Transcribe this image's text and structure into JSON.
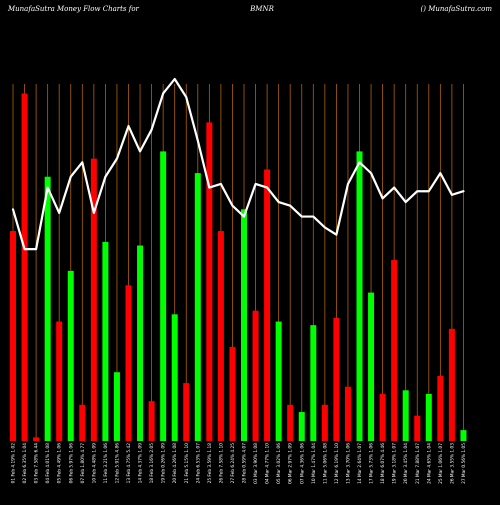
{
  "header": {
    "left_text": "MunafaSutra  Money Flow  Charts for",
    "ticker": "BMNR",
    "right_text": "() MunafaSutra.com"
  },
  "colors": {
    "background": "#000000",
    "up": "#00ff00",
    "down": "#ff0000",
    "line": "#ffffff",
    "grid": "#b0620a"
  },
  "chart_data": {
    "type": "bar",
    "grid": "vertical-orange",
    "ylim": [
      0,
      100
    ],
    "categories": [
      "01 Feb 4.19% 1.02",
      "02 Feb 6.35% 1.04",
      "03 Feb 7.58% 6.44",
      "04 Feb 4.01% 1.08",
      "05 Feb 4.49% 1.06",
      "06 Feb 5.97% 1.06",
      "07 Feb 1.80% 4.77",
      "10 Feb 4.48% 1.09",
      "11 Feb 3.21% 1.06",
      "12 Feb 5.91% 4.86",
      "13 Feb 4.75% 5.42",
      "14 Feb 4.37% 1.09",
      "18 Feb 3.16% 2.05",
      "19 Feb 0.26% 1.09",
      "20 Feb 4.26% 1.08",
      "21 Feb 5.15% 1.10",
      "24 Feb 6.53% 1.07",
      "25 Feb 3.59% 1.18",
      "26 Feb 7.58% 1.10",
      "27 Feb 6.24% 4.25",
      "28 Feb 0.59% 4.07",
      "03 Mar 3.90% 1.08",
      "04 Mar 4.77% 1.10",
      "05 Mar 3.02% 1.06",
      "06 Mar 2.97% 1.09",
      "07 Mar 4.36% 1.06",
      "10 Mar 1.47% 1.04",
      "11 Mar 5.06% 1.08",
      "12 Mar 6.19% 1.10",
      "13 Mar 3.70% 1.06",
      "14 Mar 2.64% 1.07",
      "17 Mar 5.73% 1.06",
      "18 Mar 6.07% 4.46",
      "19 Mar 3.18% 1.07",
      "20 Mar 3.45% 1.04",
      "21 Mar 7.88% 1.07",
      "24 Mar 4.65% 1.04",
      "25 Mar 1.06% 1.07",
      "26 Mar 3.55% 1.03",
      "27 Mar 0.56% 1.05"
    ],
    "series": [
      {
        "colors": [
          "down",
          "down",
          "down",
          "up",
          "down",
          "up",
          "down",
          "down",
          "up",
          "up",
          "down",
          "up",
          "down",
          "up",
          "up",
          "down",
          "up",
          "down",
          "down",
          "down",
          "up",
          "down",
          "down",
          "up",
          "down",
          "up",
          "up",
          "down",
          "down",
          "down",
          "up",
          "up",
          "down",
          "down",
          "up",
          "down",
          "up",
          "down",
          "down",
          "up"
        ],
        "values": [
          58,
          96,
          1,
          73,
          33,
          47,
          10,
          78,
          55,
          19,
          43,
          54,
          11,
          80,
          35,
          16,
          74,
          88,
          58,
          26,
          64,
          36,
          75,
          33,
          10,
          8,
          32,
          10,
          34,
          15,
          80,
          41,
          13,
          50,
          14,
          7,
          13,
          18,
          31,
          3
        ]
      },
      {
        "values": [
          64,
          53,
          53,
          70,
          63,
          73,
          77,
          63,
          73,
          78,
          87,
          80,
          86,
          96,
          100,
          95,
          83,
          70,
          71,
          65,
          62,
          71,
          70,
          66,
          65,
          62,
          62,
          59,
          57,
          71,
          77,
          74,
          67,
          70,
          66,
          69,
          69,
          74,
          68,
          69
        ]
      }
    ]
  }
}
